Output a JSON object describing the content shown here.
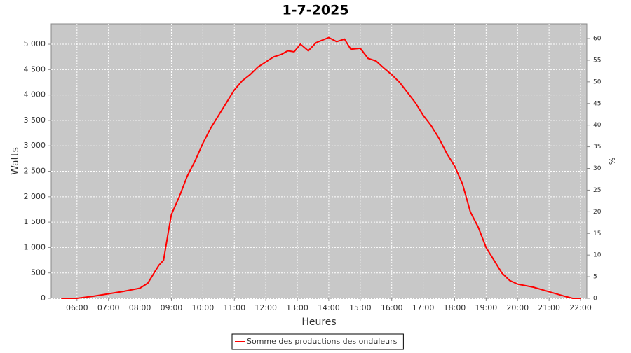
{
  "chart_data": {
    "type": "line",
    "title": "1-7-2025",
    "x_label": "Heures",
    "y_label": "Watts",
    "y2_label": "%",
    "x": [
      5.5,
      6.0,
      6.5,
      7.0,
      7.5,
      8.0,
      8.25,
      8.5,
      8.6,
      8.75,
      8.9,
      9.0,
      9.25,
      9.5,
      9.75,
      10.0,
      10.25,
      10.5,
      10.75,
      11.0,
      11.25,
      11.5,
      11.75,
      12.0,
      12.25,
      12.5,
      12.7,
      12.9,
      13.1,
      13.35,
      13.6,
      13.8,
      14.0,
      14.25,
      14.5,
      14.7,
      15.0,
      15.25,
      15.5,
      15.75,
      16.0,
      16.25,
      16.5,
      16.75,
      17.0,
      17.25,
      17.5,
      17.75,
      18.0,
      18.25,
      18.5,
      18.75,
      19.0,
      19.25,
      19.5,
      19.75,
      20.0,
      20.5,
      21.0,
      21.5,
      21.75,
      22.0
    ],
    "series": [
      {
        "name": "Somme des productions des onduleurs",
        "color": "#ff0000",
        "values": [
          0,
          0,
          40,
          90,
          140,
          200,
          300,
          550,
          650,
          750,
          1300,
          1650,
          2000,
          2400,
          2700,
          3050,
          3350,
          3600,
          3850,
          4100,
          4280,
          4400,
          4550,
          4650,
          4750,
          4800,
          4870,
          4850,
          5000,
          4870,
          5030,
          5080,
          5130,
          5050,
          5100,
          4900,
          4920,
          4720,
          4670,
          4530,
          4400,
          4250,
          4050,
          3850,
          3600,
          3400,
          3150,
          2850,
          2600,
          2250,
          1700,
          1400,
          1000,
          750,
          500,
          350,
          280,
          220,
          130,
          40,
          0,
          0
        ]
      }
    ],
    "xlim": [
      5.18,
      22.2
    ],
    "xticks": [
      {
        "value": 6,
        "label": "06:00"
      },
      {
        "value": 7,
        "label": "07:00"
      },
      {
        "value": 8,
        "label": "08:00"
      },
      {
        "value": 9,
        "label": "09:00"
      },
      {
        "value": 10,
        "label": "10:00"
      },
      {
        "value": 11,
        "label": "11:00"
      },
      {
        "value": 12,
        "label": "12:00"
      },
      {
        "value": 13,
        "label": "13:00"
      },
      {
        "value": 14,
        "label": "14:00"
      },
      {
        "value": 15,
        "label": "15:00"
      },
      {
        "value": 16,
        "label": "16:00"
      },
      {
        "value": 17,
        "label": "17:00"
      },
      {
        "value": 18,
        "label": "18:00"
      },
      {
        "value": 19,
        "label": "19:00"
      },
      {
        "value": 20,
        "label": "20:00"
      },
      {
        "value": 21,
        "label": "21:00"
      },
      {
        "value": 22,
        "label": "22:00"
      }
    ],
    "ylim": [
      0,
      5400
    ],
    "yticks": [
      0,
      500,
      {
        "value": 1000,
        "label": "1 000"
      },
      {
        "value": 1500,
        "label": "1 500"
      },
      {
        "value": 2000,
        "label": "2 000"
      },
      {
        "value": 2500,
        "label": "2 500"
      },
      {
        "value": 3000,
        "label": "3 000"
      },
      {
        "value": 3500,
        "label": "3 500"
      },
      {
        "value": 4000,
        "label": "4 000"
      },
      {
        "value": 4500,
        "label": "4 500"
      },
      {
        "value": 5000,
        "label": "5 000"
      }
    ],
    "y2lim": [
      0,
      63.4
    ],
    "y2ticks": [
      0,
      5,
      10,
      15,
      20,
      25,
      30,
      35,
      40,
      45,
      50,
      55,
      60
    ],
    "grid": true,
    "legend": "bottom",
    "background": "#c8c8c8"
  }
}
